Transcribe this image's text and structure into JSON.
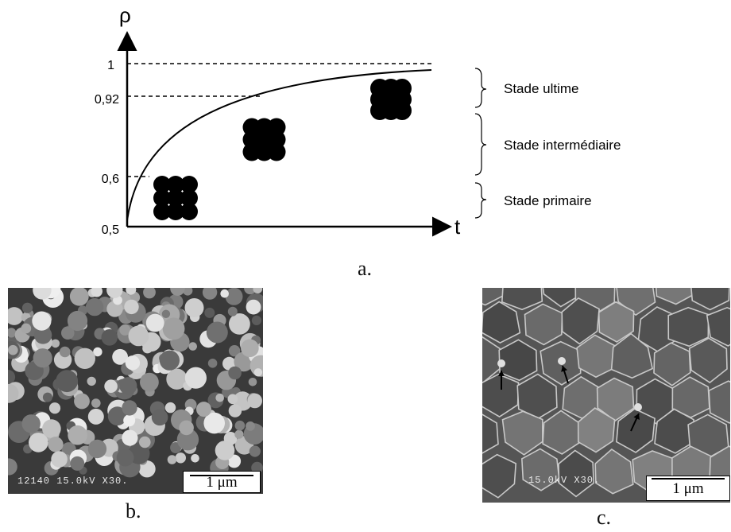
{
  "diagram": {
    "y_axis_symbol": "ρ",
    "x_axis_symbol": "t",
    "y_ticks": [
      "1",
      "0,92",
      "0,6",
      "0,5"
    ],
    "stages": [
      "Stade ultime",
      "Stade intermédiaire",
      "Stade primaire"
    ],
    "caption": "a."
  },
  "photo_b": {
    "overlay_text": "12140  15.0kV X30.",
    "scale_label": "1 μm",
    "caption": "b."
  },
  "photo_c": {
    "overlay_text": "15.0kV X30.",
    "scale_label": "1 μm",
    "caption": "c."
  }
}
